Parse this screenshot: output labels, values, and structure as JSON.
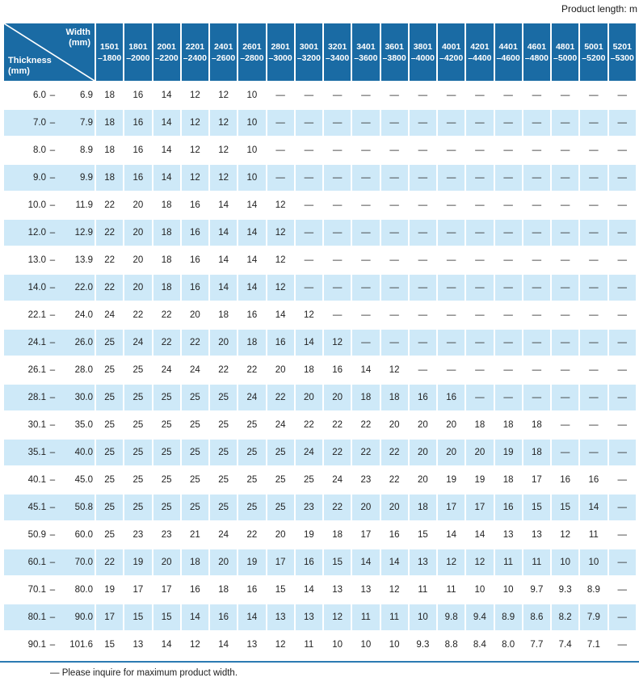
{
  "page": {
    "product_length_note": "Product length: m"
  },
  "colors": {
    "header_blue": "#1a6ba4",
    "row_alt_blue": "#cee9f8",
    "rule_blue": "#2b7ab2"
  },
  "table": {
    "corner": {
      "width_label": "Width",
      "width_unit": "(mm)",
      "thickness_label": "Thickness",
      "thickness_unit": "(mm)"
    },
    "columns": [
      {
        "line1": "1501",
        "line2": "–1800"
      },
      {
        "line1": "1801",
        "line2": "–2000"
      },
      {
        "line1": "2001",
        "line2": "–2200"
      },
      {
        "line1": "2201",
        "line2": "–2400"
      },
      {
        "line1": "2401",
        "line2": "–2600"
      },
      {
        "line1": "2601",
        "line2": "–2800"
      },
      {
        "line1": "2801",
        "line2": "–3000"
      },
      {
        "line1": "3001",
        "line2": "–3200"
      },
      {
        "line1": "3201",
        "line2": "–3400"
      },
      {
        "line1": "3401",
        "line2": "–3600"
      },
      {
        "line1": "3601",
        "line2": "–3800"
      },
      {
        "line1": "3801",
        "line2": "–4000"
      },
      {
        "line1": "4001",
        "line2": "–4200"
      },
      {
        "line1": "4201",
        "line2": "–4400"
      },
      {
        "line1": "4401",
        "line2": "–4600"
      },
      {
        "line1": "4601",
        "line2": "–4800"
      },
      {
        "line1": "4801",
        "line2": "–5000"
      },
      {
        "line1": "5001",
        "line2": "–5200"
      },
      {
        "line1": "5201",
        "line2": "–5300"
      }
    ],
    "rows": [
      {
        "thickness_min": "6.0",
        "thickness_max": "6.9",
        "values": [
          "18",
          "16",
          "14",
          "12",
          "12",
          "10",
          "—",
          "—",
          "—",
          "—",
          "—",
          "—",
          "—",
          "—",
          "—",
          "—",
          "—",
          "—",
          "—"
        ]
      },
      {
        "thickness_min": "7.0",
        "thickness_max": "7.9",
        "values": [
          "18",
          "16",
          "14",
          "12",
          "12",
          "10",
          "—",
          "—",
          "—",
          "—",
          "—",
          "—",
          "—",
          "—",
          "—",
          "—",
          "—",
          "—",
          "—"
        ]
      },
      {
        "thickness_min": "8.0",
        "thickness_max": "8.9",
        "values": [
          "18",
          "16",
          "14",
          "12",
          "12",
          "10",
          "—",
          "—",
          "—",
          "—",
          "—",
          "—",
          "—",
          "—",
          "—",
          "—",
          "—",
          "—",
          "—"
        ]
      },
      {
        "thickness_min": "9.0",
        "thickness_max": "9.9",
        "values": [
          "18",
          "16",
          "14",
          "12",
          "12",
          "10",
          "—",
          "—",
          "—",
          "—",
          "—",
          "—",
          "—",
          "—",
          "—",
          "—",
          "—",
          "—",
          "—"
        ]
      },
      {
        "thickness_min": "10.0",
        "thickness_max": "11.9",
        "values": [
          "22",
          "20",
          "18",
          "16",
          "14",
          "14",
          "12",
          "—",
          "—",
          "—",
          "—",
          "—",
          "—",
          "—",
          "—",
          "—",
          "—",
          "—",
          "—"
        ]
      },
      {
        "thickness_min": "12.0",
        "thickness_max": "12.9",
        "values": [
          "22",
          "20",
          "18",
          "16",
          "14",
          "14",
          "12",
          "—",
          "—",
          "—",
          "—",
          "—",
          "—",
          "—",
          "—",
          "—",
          "—",
          "—",
          "—"
        ]
      },
      {
        "thickness_min": "13.0",
        "thickness_max": "13.9",
        "values": [
          "22",
          "20",
          "18",
          "16",
          "14",
          "14",
          "12",
          "—",
          "—",
          "—",
          "—",
          "—",
          "—",
          "—",
          "—",
          "—",
          "—",
          "—",
          "—"
        ]
      },
      {
        "thickness_min": "14.0",
        "thickness_max": "22.0",
        "values": [
          "22",
          "20",
          "18",
          "16",
          "14",
          "14",
          "12",
          "—",
          "—",
          "—",
          "—",
          "—",
          "—",
          "—",
          "—",
          "—",
          "—",
          "—",
          "—"
        ]
      },
      {
        "thickness_min": "22.1",
        "thickness_max": "24.0",
        "values": [
          "24",
          "22",
          "22",
          "20",
          "18",
          "16",
          "14",
          "12",
          "—",
          "—",
          "—",
          "—",
          "—",
          "—",
          "—",
          "—",
          "—",
          "—",
          "—"
        ]
      },
      {
        "thickness_min": "24.1",
        "thickness_max": "26.0",
        "values": [
          "25",
          "24",
          "22",
          "22",
          "20",
          "18",
          "16",
          "14",
          "12",
          "—",
          "—",
          "—",
          "—",
          "—",
          "—",
          "—",
          "—",
          "—",
          "—"
        ]
      },
      {
        "thickness_min": "26.1",
        "thickness_max": "28.0",
        "values": [
          "25",
          "25",
          "24",
          "24",
          "22",
          "22",
          "20",
          "18",
          "16",
          "14",
          "12",
          "—",
          "—",
          "—",
          "—",
          "—",
          "—",
          "—",
          "—"
        ]
      },
      {
        "thickness_min": "28.1",
        "thickness_max": "30.0",
        "values": [
          "25",
          "25",
          "25",
          "25",
          "25",
          "24",
          "22",
          "20",
          "20",
          "18",
          "18",
          "16",
          "16",
          "—",
          "—",
          "—",
          "—",
          "—",
          "—"
        ]
      },
      {
        "thickness_min": "30.1",
        "thickness_max": "35.0",
        "values": [
          "25",
          "25",
          "25",
          "25",
          "25",
          "25",
          "24",
          "22",
          "22",
          "22",
          "20",
          "20",
          "20",
          "18",
          "18",
          "18",
          "—",
          "—",
          "—"
        ]
      },
      {
        "thickness_min": "35.1",
        "thickness_max": "40.0",
        "values": [
          "25",
          "25",
          "25",
          "25",
          "25",
          "25",
          "25",
          "24",
          "22",
          "22",
          "22",
          "20",
          "20",
          "20",
          "19",
          "18",
          "—",
          "—",
          "—"
        ]
      },
      {
        "thickness_min": "40.1",
        "thickness_max": "45.0",
        "values": [
          "25",
          "25",
          "25",
          "25",
          "25",
          "25",
          "25",
          "25",
          "24",
          "23",
          "22",
          "20",
          "19",
          "19",
          "18",
          "17",
          "16",
          "16",
          "—"
        ]
      },
      {
        "thickness_min": "45.1",
        "thickness_max": "50.8",
        "values": [
          "25",
          "25",
          "25",
          "25",
          "25",
          "25",
          "25",
          "23",
          "22",
          "20",
          "20",
          "18",
          "17",
          "17",
          "16",
          "15",
          "15",
          "14",
          "—"
        ]
      },
      {
        "thickness_min": "50.9",
        "thickness_max": "60.0",
        "values": [
          "25",
          "23",
          "23",
          "21",
          "24",
          "22",
          "20",
          "19",
          "18",
          "17",
          "16",
          "15",
          "14",
          "14",
          "13",
          "13",
          "12",
          "11",
          "—"
        ]
      },
      {
        "thickness_min": "60.1",
        "thickness_max": "70.0",
        "values": [
          "22",
          "19",
          "20",
          "18",
          "20",
          "19",
          "17",
          "16",
          "15",
          "14",
          "14",
          "13",
          "12",
          "12",
          "11",
          "11",
          "10",
          "10",
          "—"
        ]
      },
      {
        "thickness_min": "70.1",
        "thickness_max": "80.0",
        "values": [
          "19",
          "17",
          "17",
          "16",
          "18",
          "16",
          "15",
          "14",
          "13",
          "13",
          "12",
          "11",
          "11",
          "10",
          "10",
          "9.7",
          "9.3",
          "8.9",
          "—"
        ]
      },
      {
        "thickness_min": "80.1",
        "thickness_max": "90.0",
        "values": [
          "17",
          "15",
          "15",
          "14",
          "16",
          "14",
          "13",
          "13",
          "12",
          "11",
          "11",
          "10",
          "9.8",
          "9.4",
          "8.9",
          "8.6",
          "8.2",
          "7.9",
          "—"
        ]
      },
      {
        "thickness_min": "90.1",
        "thickness_max": "101.6",
        "values": [
          "15",
          "13",
          "14",
          "12",
          "14",
          "13",
          "12",
          "11",
          "10",
          "10",
          "10",
          "9.3",
          "8.8",
          "8.4",
          "8.0",
          "7.7",
          "7.4",
          "7.1",
          "—"
        ]
      }
    ]
  },
  "footer": {
    "note": "— Please inquire for maximum product width."
  }
}
